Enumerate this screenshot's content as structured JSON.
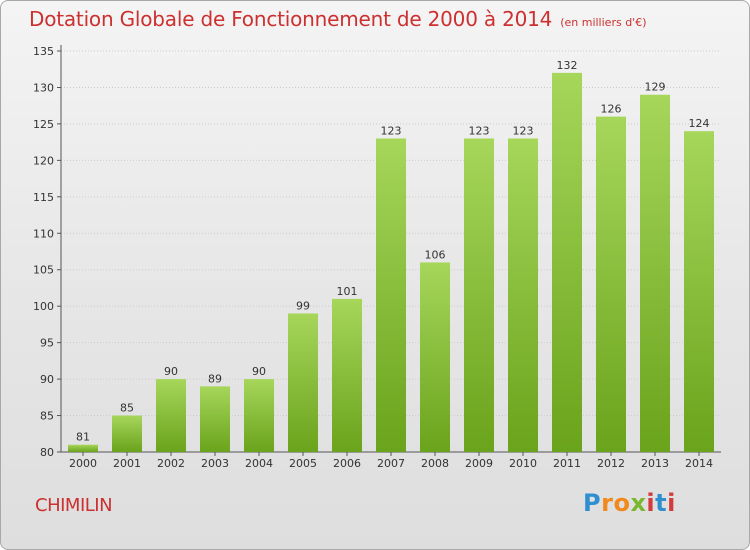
{
  "title": "Dotation Globale de Fonctionnement de 2000 à 2014",
  "unit_label": "(en milliers d'€)",
  "commune": "CHIMILIN",
  "logo": {
    "text": "Proxiti"
  },
  "colors": {
    "title": "#cc3030",
    "bar_light": "#a6d65a",
    "bar_dark": "#6aa31c",
    "grid": "#cccccc"
  },
  "chart_data": {
    "type": "bar",
    "title": "Dotation Globale de Fonctionnement de 2000 à 2014",
    "xlabel": "",
    "ylabel": "",
    "categories": [
      "2000",
      "2001",
      "2002",
      "2003",
      "2004",
      "2005",
      "2006",
      "2007",
      "2008",
      "2009",
      "2010",
      "2011",
      "2012",
      "2013",
      "2014"
    ],
    "values": [
      81,
      85,
      90,
      89,
      90,
      99,
      101,
      123,
      106,
      123,
      123,
      132,
      126,
      129,
      124
    ],
    "ylim": [
      80,
      135
    ],
    "yticks": [
      80,
      85,
      90,
      95,
      100,
      105,
      110,
      115,
      120,
      125,
      130,
      135
    ],
    "grid": true
  }
}
